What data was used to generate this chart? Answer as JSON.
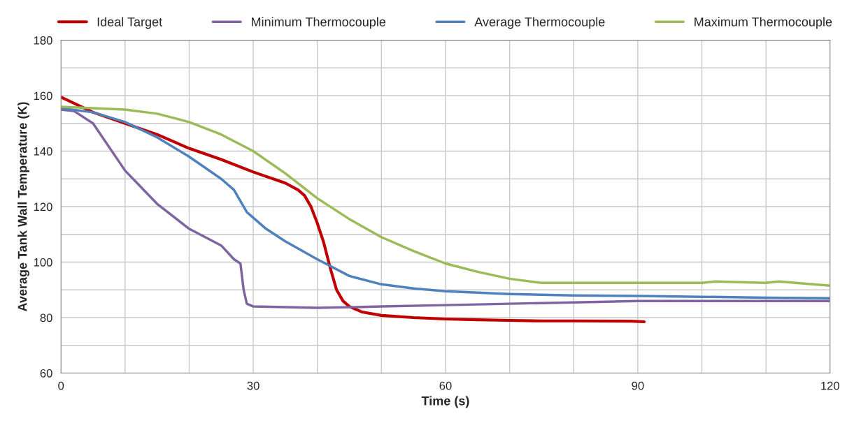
{
  "chart_data": {
    "type": "line",
    "xlabel": "Time (s)",
    "ylabel": "Average Tank Wall Temperature (K)",
    "xlim": [
      0,
      120
    ],
    "ylim": [
      60,
      180
    ],
    "xticks": [
      0,
      {
        "value": 10,
        "label": null
      },
      {
        "value": 20,
        "label": null
      },
      30,
      {
        "value": 40,
        "label": null
      },
      {
        "value": 50,
        "label": null
      },
      60,
      {
        "value": 70,
        "label": null
      },
      {
        "value": 80,
        "label": null
      },
      90,
      {
        "value": 100,
        "label": null
      },
      {
        "value": 110,
        "label": null
      },
      120
    ],
    "yticks": [
      60,
      {
        "value": 70,
        "label": null
      },
      80,
      {
        "value": 90,
        "label": null
      },
      100,
      {
        "value": 110,
        "label": null
      },
      120,
      {
        "value": 130,
        "label": null
      },
      140,
      {
        "value": 150,
        "label": null
      },
      160,
      {
        "value": 170,
        "label": null
      },
      180
    ],
    "grid": true,
    "legend": "top",
    "marker": "none",
    "line_style": "solid",
    "series": [
      {
        "name": "Ideal Target",
        "color": "#c00000",
        "x": [
          0,
          5,
          10,
          15,
          20,
          25,
          30,
          35,
          37,
          38,
          39,
          40,
          41,
          42,
          43,
          44,
          45,
          47,
          50,
          55,
          60,
          65,
          70,
          75,
          80,
          89,
          91
        ],
        "values": [
          159.5,
          154,
          150,
          146,
          141,
          137,
          132.5,
          128.5,
          126,
          124,
          120,
          114,
          107,
          98,
          90,
          86,
          84,
          82,
          80.8,
          80,
          79.5,
          79.2,
          79,
          78.8,
          78.8,
          78.7,
          78.5
        ]
      },
      {
        "name": "Minimum Thermocouple",
        "color": "#8064a2",
        "x": [
          0,
          2,
          5,
          10,
          15,
          20,
          25,
          27,
          28,
          28.5,
          29,
          30,
          40,
          50,
          60,
          70,
          80,
          90,
          100,
          110,
          120
        ],
        "values": [
          155,
          154.5,
          150,
          133,
          121,
          112,
          106,
          101,
          99.5,
          90,
          85,
          84,
          83.5,
          84,
          84.5,
          85,
          85.5,
          86,
          86,
          86,
          86
        ]
      },
      {
        "name": "Average Thermocouple",
        "color": "#4f81bd",
        "x": [
          0,
          5,
          10,
          15,
          20,
          25,
          27,
          28,
          29,
          30,
          32,
          35,
          40,
          45,
          50,
          55,
          60,
          70,
          80,
          90,
          100,
          110,
          120
        ],
        "values": [
          155.5,
          154,
          150.5,
          145,
          138,
          130,
          126,
          122,
          118,
          116,
          112,
          107.5,
          101,
          95,
          92,
          90.5,
          89.5,
          88.5,
          88,
          87.8,
          87.5,
          87.2,
          87
        ]
      },
      {
        "name": "Maximum Thermocouple",
        "color": "#9bbb59",
        "x": [
          0,
          5,
          10,
          15,
          20,
          25,
          30,
          35,
          40,
          45,
          50,
          55,
          60,
          65,
          70,
          75,
          80,
          90,
          100,
          102,
          110,
          112,
          120
        ],
        "values": [
          156,
          155.5,
          155,
          153.5,
          150.5,
          146,
          140,
          132,
          123,
          115.5,
          109,
          104,
          99.5,
          96.5,
          94,
          92.5,
          92.5,
          92.5,
          92.5,
          93,
          92.5,
          93,
          91.5
        ]
      }
    ]
  }
}
